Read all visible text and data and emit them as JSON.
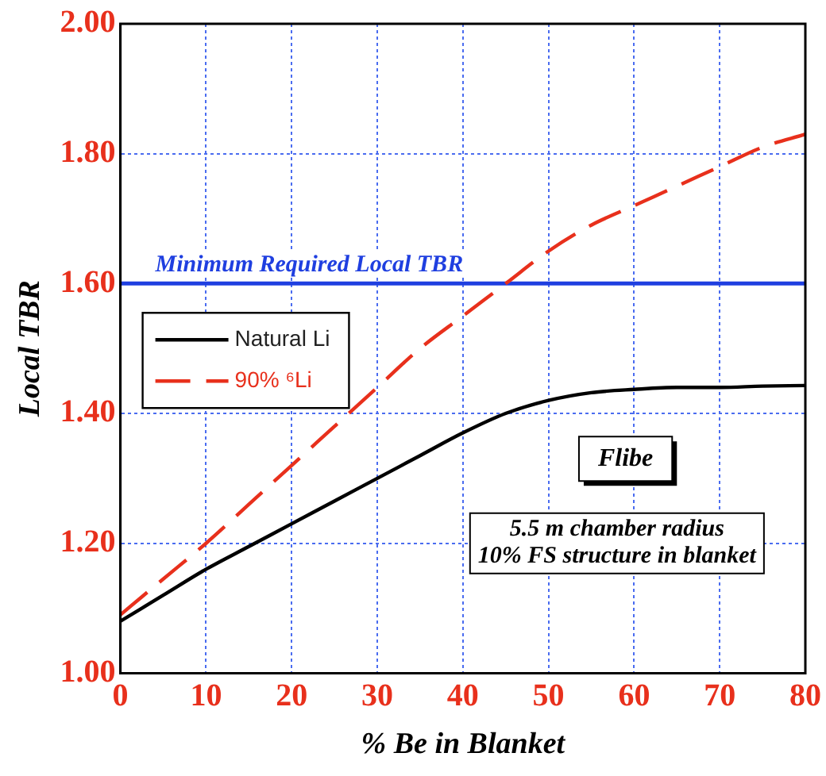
{
  "chart_data": {
    "type": "line",
    "xlabel": "% Be in Blanket",
    "ylabel": "Local TBR",
    "x": [
      0,
      5,
      10,
      15,
      20,
      25,
      30,
      35,
      40,
      45,
      50,
      55,
      60,
      65,
      70,
      75,
      80
    ],
    "series": [
      {
        "name": "Natural Li",
        "color": "#000000",
        "line_style": "solid",
        "values": [
          1.08,
          1.12,
          1.16,
          1.195,
          1.23,
          1.265,
          1.3,
          1.335,
          1.37,
          1.4,
          1.42,
          1.432,
          1.437,
          1.44,
          1.44,
          1.442,
          1.443
        ]
      },
      {
        "name": "90% ⁶Li",
        "color": "#e8301c",
        "line_style": "dashed",
        "values": [
          1.09,
          1.145,
          1.2,
          1.26,
          1.32,
          1.38,
          1.44,
          1.5,
          1.55,
          1.6,
          1.65,
          1.69,
          1.72,
          1.75,
          1.78,
          1.81,
          1.83
        ]
      }
    ],
    "xlim": [
      0,
      80
    ],
    "xticks": [
      0,
      10,
      20,
      30,
      40,
      50,
      60,
      70,
      80
    ],
    "ylim": [
      1,
      2
    ],
    "yticks": [
      {
        "value": 1,
        "label": "1.00"
      },
      {
        "value": 1.2,
        "label": "1.20"
      },
      {
        "value": 1.4,
        "label": "1.40"
      },
      {
        "value": 1.6,
        "label": "1.60"
      },
      {
        "value": 1.8,
        "label": "1.80"
      },
      {
        "value": 2,
        "label": "2.00"
      }
    ],
    "ref_lines": [
      {
        "axis": "y",
        "value": 1.6,
        "label": "Minimum Required Local TBR",
        "color": "#1f3fe0"
      }
    ],
    "annotations": [
      "Flibe",
      "5.5 m chamber radius",
      "10% FS structure in blanket"
    ],
    "grid": true,
    "legend": "left",
    "marker": "none"
  }
}
